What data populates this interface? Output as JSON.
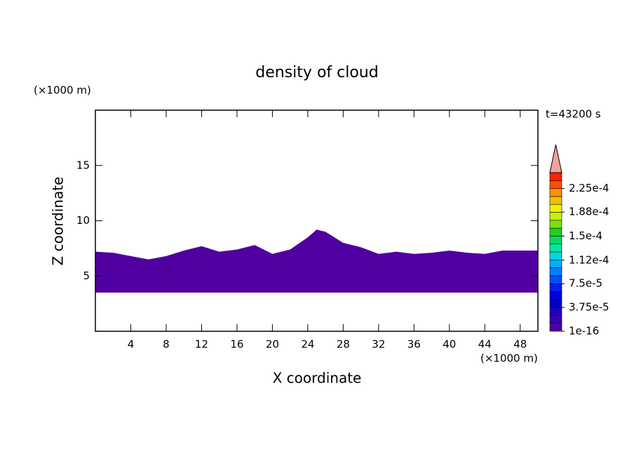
{
  "chart_data": {
    "type": "contour",
    "title": "density of cloud",
    "time_label": "t=43200 s",
    "xlabel": "X coordinate",
    "ylabel": "Z coordinate",
    "xunit": "(×1000 m)",
    "yunit": "(×1000 m)",
    "xlim": [
      0,
      50
    ],
    "ylim": [
      0,
      20
    ],
    "xticks": [
      4,
      8,
      12,
      16,
      20,
      24,
      28,
      32,
      36,
      40,
      44,
      48
    ],
    "yticks": [
      5,
      10,
      15
    ],
    "region": {
      "color": "#5000a0",
      "x": [
        0,
        2,
        4,
        6,
        8,
        10,
        12,
        14,
        16,
        18,
        20,
        22,
        24,
        25,
        26,
        28,
        30,
        32,
        34,
        36,
        38,
        40,
        42,
        44,
        46,
        48,
        50
      ],
      "top": [
        7.2,
        7.1,
        6.8,
        6.5,
        6.8,
        7.3,
        7.7,
        7.2,
        7.4,
        7.8,
        7.0,
        7.4,
        8.5,
        9.2,
        9.0,
        8.0,
        7.6,
        7.0,
        7.2,
        7.0,
        7.1,
        7.3,
        7.1,
        7.0,
        7.3,
        7.3,
        7.3
      ],
      "base": [
        3.5,
        3.5,
        3.5,
        3.5,
        3.5,
        3.5,
        3.5,
        3.5,
        3.5,
        3.5,
        3.5,
        3.5,
        3.5,
        3.5,
        3.5,
        3.5,
        3.5,
        3.5,
        3.5,
        3.5,
        3.5,
        3.5,
        3.5,
        3.5,
        3.5,
        3.5,
        3.5
      ]
    },
    "colorbar": {
      "clim": [
        1e-16,
        0.00025
      ],
      "extend_color": "#f4a0a0",
      "colors": [
        "#5000a0",
        "#3a00b0",
        "#2000c0",
        "#0000c8",
        "#0000e0",
        "#0020f0",
        "#0050ff",
        "#0080ff",
        "#00b0ff",
        "#00d8e0",
        "#00e8a0",
        "#00e060",
        "#20d020",
        "#80e000",
        "#c8f000",
        "#f0f000",
        "#f0c000",
        "#ff9000",
        "#ff5000",
        "#ff2000"
      ],
      "ticks": [
        {
          "value": 1e-16,
          "label": "1e-16"
        },
        {
          "value": 3.75e-05,
          "label": "3.75e-5"
        },
        {
          "value": 7.5e-05,
          "label": "7.5e-5"
        },
        {
          "value": 0.000112,
          "label": "1.12e-4"
        },
        {
          "value": 0.00015,
          "label": "1.5e-4"
        },
        {
          "value": 0.000188,
          "label": "1.88e-4"
        },
        {
          "value": 0.000225,
          "label": "2.25e-4"
        }
      ]
    }
  }
}
